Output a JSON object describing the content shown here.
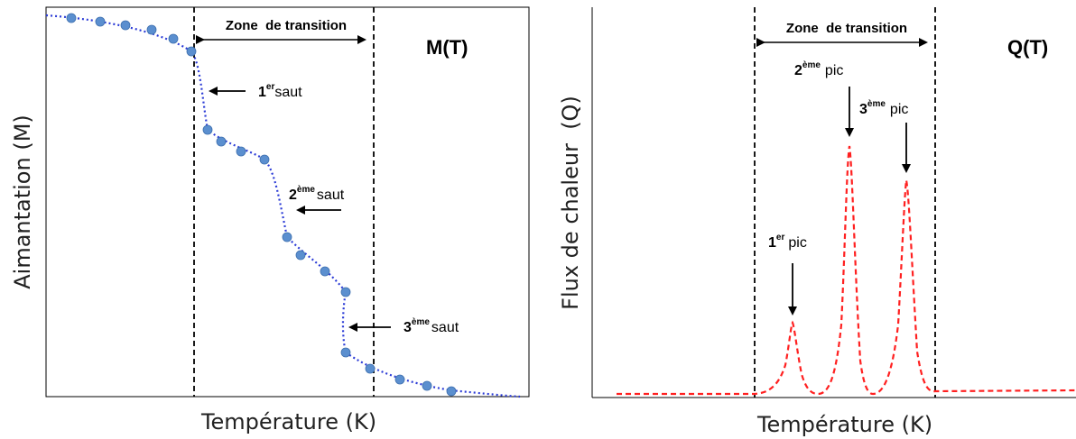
{
  "left_panel": {
    "title": "M(T)",
    "ylabel": "Aimantation (M)",
    "xlabel": "Température (K)",
    "zone_label": "Zone  de transition",
    "jumps": [
      {
        "num": "1",
        "sup": "er",
        "word": "saut"
      },
      {
        "num": "2",
        "sup": "ème",
        "word": "saut"
      },
      {
        "num": "3",
        "sup": "ème",
        "word": "saut"
      }
    ],
    "line_color": "#2b3bd6",
    "marker_color": "#5b8fcf"
  },
  "right_panel": {
    "title": "Q(T)",
    "ylabel": "Flux de chaleur  (Q)",
    "xlabel": "Température (K)",
    "zone_label": "Zone  de transition",
    "peaks": [
      {
        "num": "1",
        "sup": "er",
        "word": "pic"
      },
      {
        "num": "2",
        "sup": "ème",
        "word": "pic"
      },
      {
        "num": "3",
        "sup": "ème",
        "word": "pic"
      }
    ],
    "line_color": "#ff2020"
  }
}
